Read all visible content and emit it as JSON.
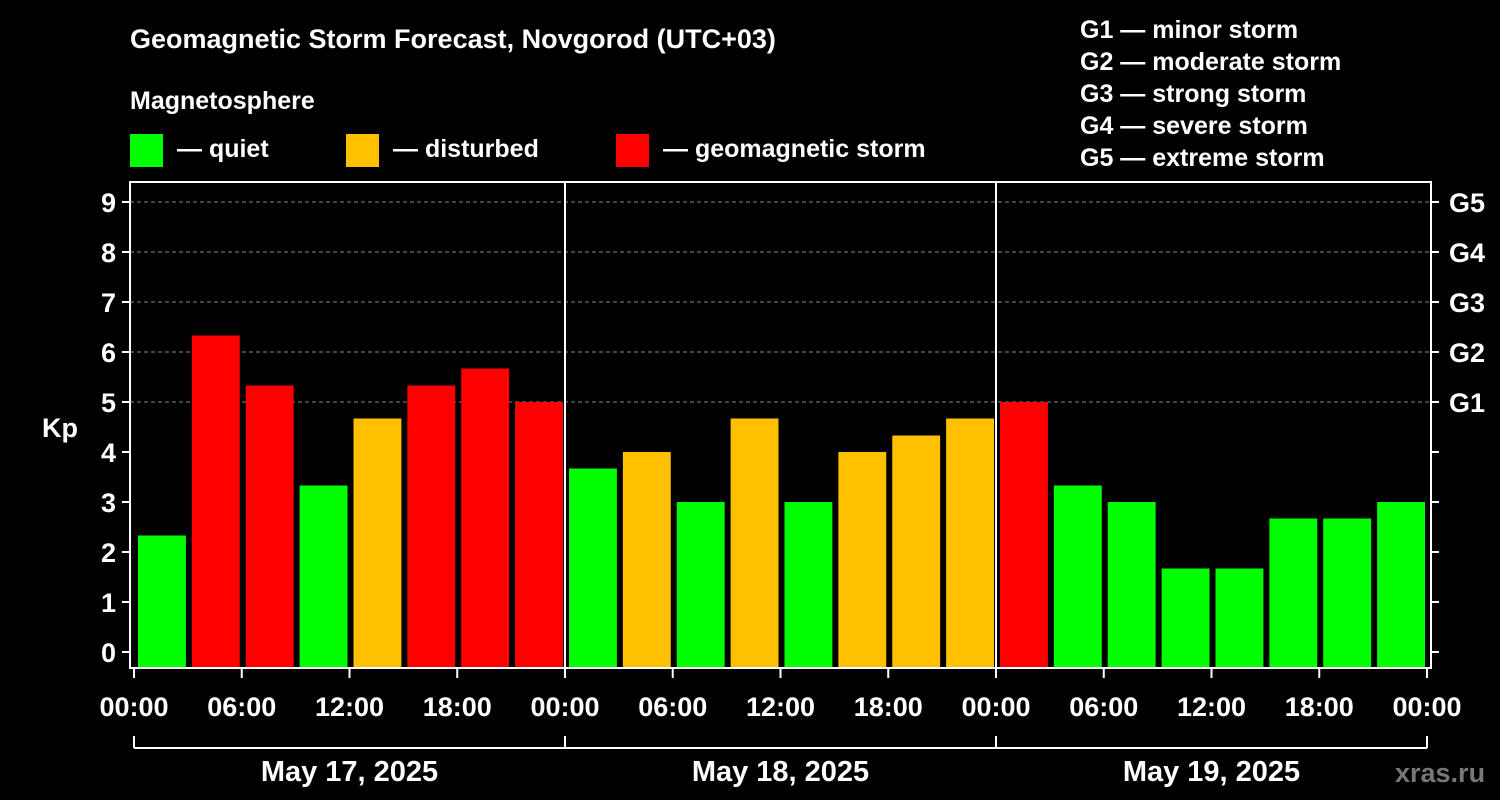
{
  "chart_data": {
    "type": "bar",
    "title": "Geomagnetic Storm Forecast, Novgorod (UTC+03)",
    "ylabel": "Kp",
    "ylim": [
      0,
      9
    ],
    "yticks": [
      "0",
      "1",
      "2",
      "3",
      "4",
      "5",
      "6",
      "7",
      "8",
      "9"
    ],
    "right_axis_labels": [
      {
        "kp": 5,
        "label": "G1"
      },
      {
        "kp": 6,
        "label": "G2"
      },
      {
        "kp": 7,
        "label": "G3"
      },
      {
        "kp": 8,
        "label": "G4"
      },
      {
        "kp": 9,
        "label": "G5"
      }
    ],
    "legend_title": "Magnetosphere",
    "legend": [
      {
        "label": "— quiet",
        "color": "#00ff00"
      },
      {
        "label": "— disturbed",
        "color": "#ffc000"
      },
      {
        "label": "— geomagnetic storm",
        "color": "#ff0000"
      }
    ],
    "storm_scale": [
      "G1 — minor storm",
      "G2 — moderate storm",
      "G3 — strong storm",
      "G4 — severe storm",
      "G5 — extreme storm"
    ],
    "days": [
      "May 17, 2025",
      "May 18, 2025",
      "May 19, 2025"
    ],
    "time_ticks": [
      "00:00",
      "06:00",
      "12:00",
      "18:00",
      "00:00",
      "06:00",
      "12:00",
      "18:00",
      "00:00",
      "06:00",
      "12:00",
      "18:00",
      "00:00"
    ],
    "values": [
      2.33,
      6.33,
      5.33,
      3.33,
      4.67,
      5.33,
      5.67,
      5.0,
      3.67,
      4.0,
      3.0,
      4.67,
      3.0,
      4.0,
      4.33,
      4.67,
      5.0,
      3.33,
      3.0,
      1.67,
      1.67,
      2.67,
      2.67,
      3.0
    ],
    "colors": [
      "#00ff00",
      "#ff0000",
      "#ff0000",
      "#00ff00",
      "#ffc000",
      "#ff0000",
      "#ff0000",
      "#ff0000",
      "#00ff00",
      "#ffc000",
      "#00ff00",
      "#ffc000",
      "#00ff00",
      "#ffc000",
      "#ffc000",
      "#ffc000",
      "#ff0000",
      "#00ff00",
      "#00ff00",
      "#00ff00",
      "#00ff00",
      "#00ff00",
      "#00ff00",
      "#00ff00"
    ],
    "watermark": "xras.ru"
  }
}
